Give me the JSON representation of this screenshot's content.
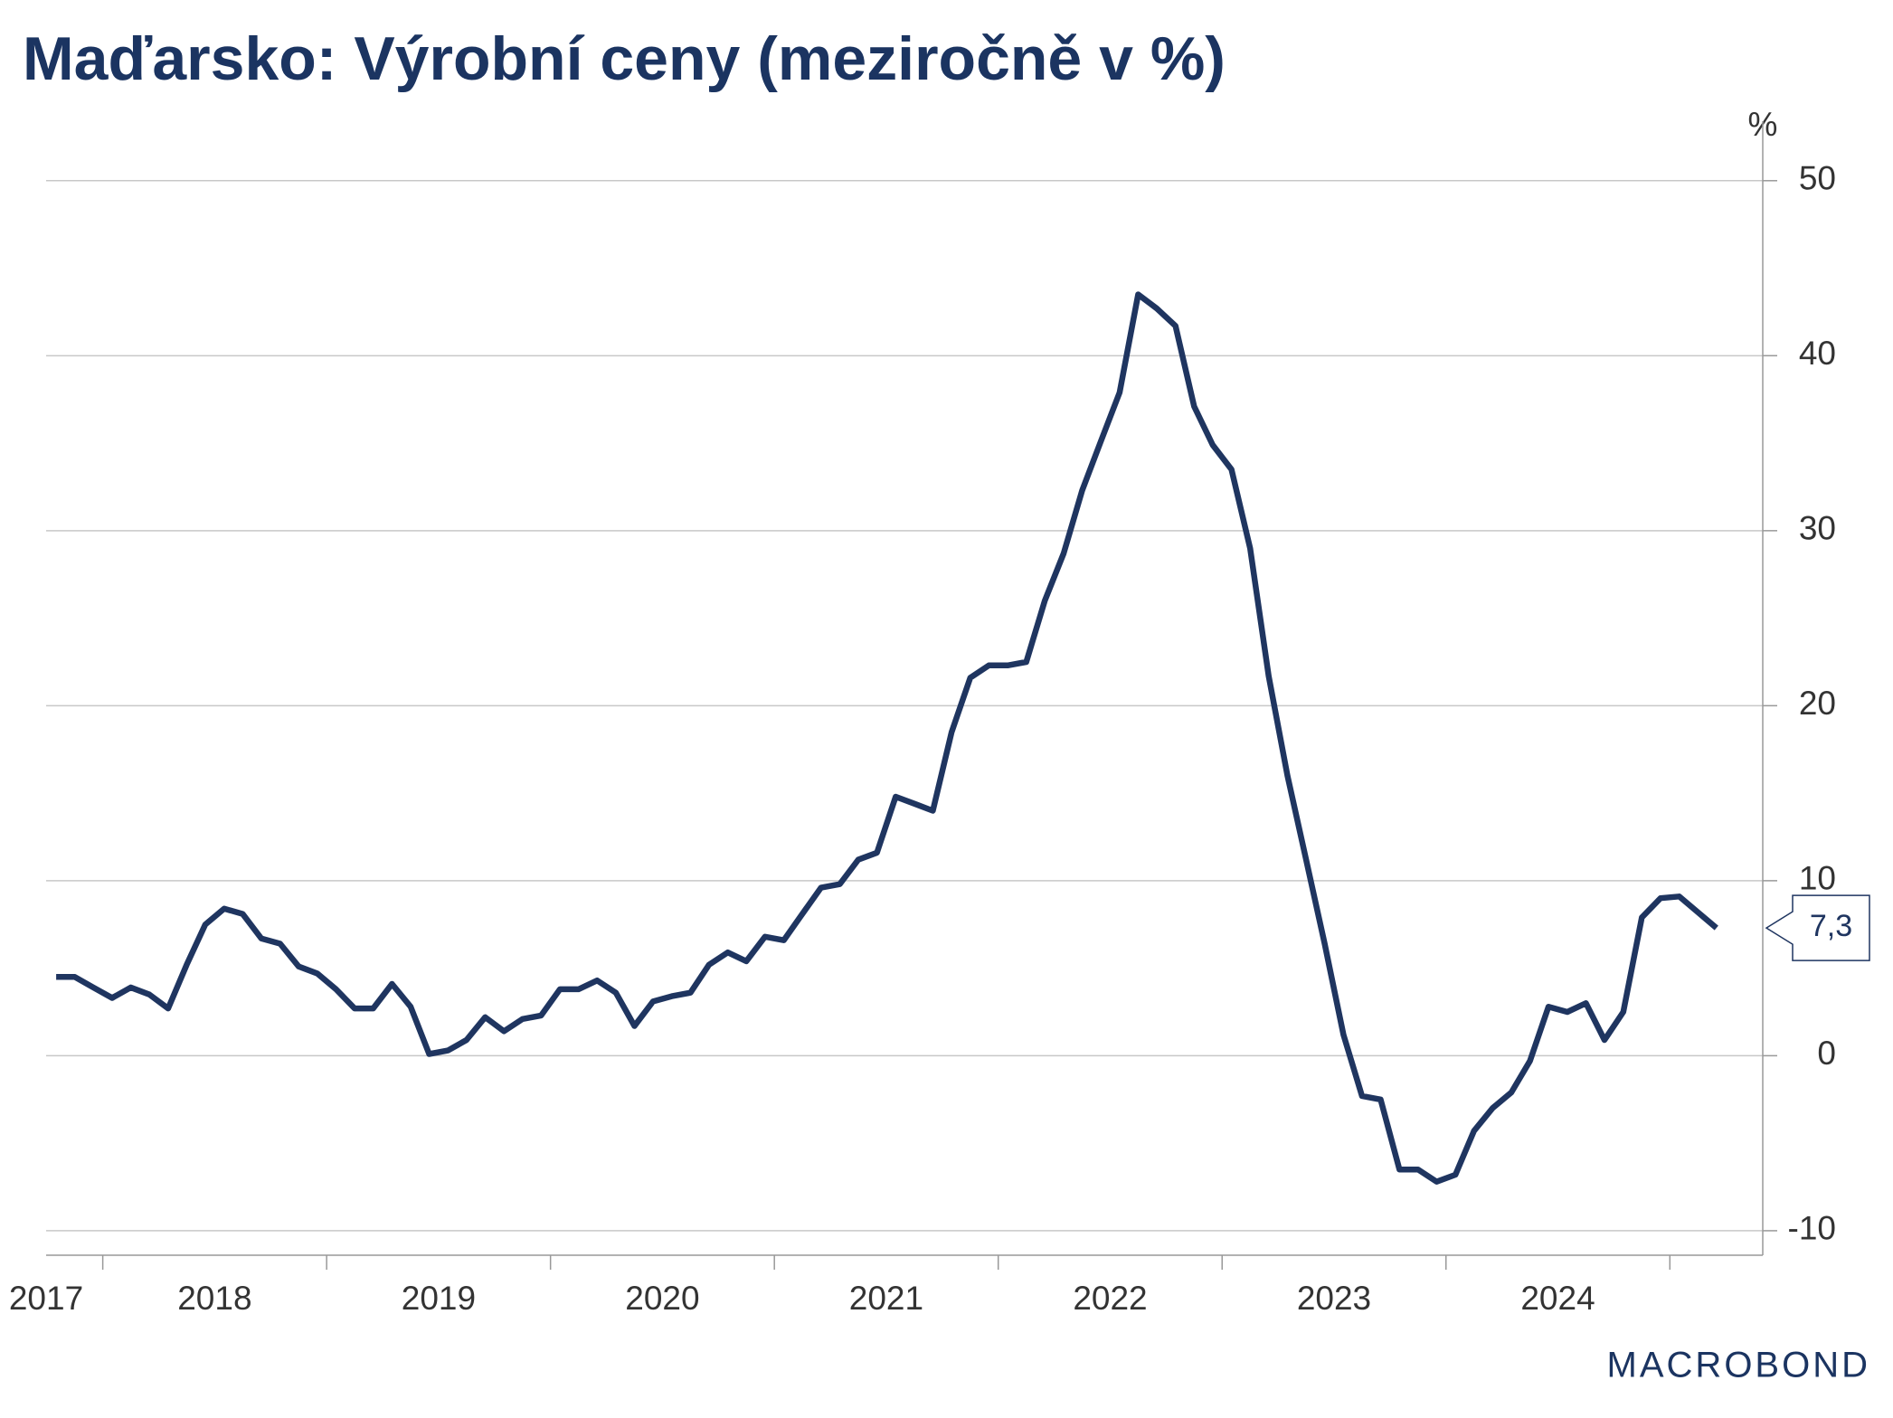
{
  "chart_data": {
    "type": "line",
    "title": "Maďarsko: Výrobní ceny (meziročně v %)",
    "y_unit": "%",
    "logo": "MACROBOND",
    "grid": true,
    "ylim": [
      -11.4,
      53.4
    ],
    "yticks": [
      -10,
      0,
      10,
      20,
      30,
      40,
      50
    ],
    "xlim": [
      2017.747,
      2025.415
    ],
    "xticks": [
      2017,
      2018,
      2019,
      2020,
      2021,
      2022,
      2023,
      2024
    ],
    "x": [
      2017.792,
      2017.875,
      2017.958,
      2018.042,
      2018.125,
      2018.208,
      2018.292,
      2018.375,
      2018.458,
      2018.542,
      2018.625,
      2018.708,
      2018.792,
      2018.875,
      2018.958,
      2019.042,
      2019.125,
      2019.208,
      2019.292,
      2019.375,
      2019.458,
      2019.542,
      2019.625,
      2019.708,
      2019.792,
      2019.875,
      2019.958,
      2020.042,
      2020.125,
      2020.208,
      2020.292,
      2020.375,
      2020.458,
      2020.542,
      2020.625,
      2020.708,
      2020.792,
      2020.875,
      2020.958,
      2021.042,
      2021.125,
      2021.208,
      2021.292,
      2021.375,
      2021.458,
      2021.542,
      2021.625,
      2021.708,
      2021.792,
      2021.875,
      2021.958,
      2022.042,
      2022.125,
      2022.208,
      2022.292,
      2022.375,
      2022.458,
      2022.542,
      2022.625,
      2022.708,
      2022.792,
      2022.875,
      2022.958,
      2023.042,
      2023.125,
      2023.208,
      2023.292,
      2023.375,
      2023.458,
      2023.542,
      2023.625,
      2023.708,
      2023.792,
      2023.875,
      2023.958,
      2024.042,
      2024.125,
      2024.208,
      2024.292,
      2024.375,
      2024.458,
      2024.542,
      2024.625,
      2024.708,
      2024.792,
      2024.875,
      2024.958,
      2025.042,
      2025.125,
      2025.208
    ],
    "series": [
      {
        "color": "#1f3560",
        "values": [
          4.5,
          4.5,
          3.9,
          3.3,
          3.9,
          3.5,
          2.7,
          5.2,
          7.5,
          8.4,
          8.1,
          6.7,
          6.4,
          5.1,
          4.7,
          3.8,
          2.7,
          2.7,
          4.1,
          2.8,
          0.1,
          0.3,
          0.9,
          2.2,
          1.4,
          2.1,
          2.3,
          3.8,
          3.8,
          4.3,
          3.6,
          1.7,
          3.1,
          3.4,
          3.6,
          5.2,
          5.9,
          5.4,
          6.8,
          6.6,
          8.1,
          9.6,
          9.8,
          11.2,
          11.6,
          14.8,
          14.4,
          14.0,
          18.5,
          21.6,
          22.3,
          22.3,
          22.5,
          26.0,
          28.7,
          32.3,
          35.1,
          37.9,
          43.5,
          42.7,
          41.7,
          37.1,
          34.9,
          33.5,
          29.0,
          21.7,
          16.0,
          11.2,
          6.4,
          1.2,
          -2.3,
          -2.5,
          -6.5,
          -6.5,
          -7.2,
          -6.8,
          -4.3,
          -3.0,
          -2.1,
          -0.3,
          2.8,
          2.5,
          3.0,
          0.9,
          2.5,
          7.9,
          9.0,
          9.1,
          8.2,
          7.3
        ],
        "value_labels": [
          null,
          null,
          null,
          null,
          null,
          null,
          null,
          null,
          null,
          null,
          null,
          null,
          null,
          null,
          null,
          null,
          null,
          null,
          null,
          null,
          null,
          null,
          null,
          null,
          null,
          null,
          null,
          null,
          null,
          null,
          null,
          null,
          null,
          null,
          null,
          null,
          null,
          null,
          null,
          null,
          null,
          null,
          null,
          null,
          null,
          null,
          null,
          null,
          null,
          null,
          null,
          null,
          null,
          null,
          null,
          null,
          null,
          null,
          null,
          null,
          null,
          null,
          null,
          null,
          null,
          null,
          null,
          null,
          null,
          null,
          null,
          null,
          null,
          null,
          null,
          null,
          null,
          null,
          null,
          null,
          null,
          null,
          null,
          null,
          null,
          null,
          null,
          null,
          null,
          "7,3"
        ]
      }
    ]
  }
}
